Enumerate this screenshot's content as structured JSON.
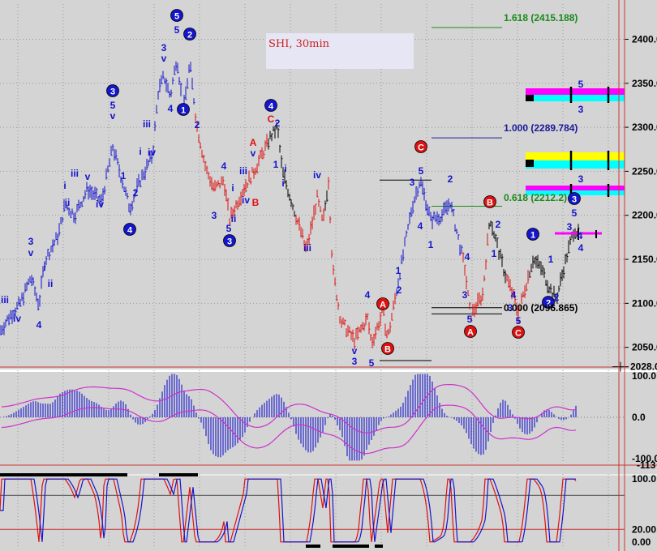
{
  "title": "SHI, 30min",
  "fib_labels": [
    {
      "text": "1.618 (2415.188)",
      "price": 2415.188,
      "color": "#1a8a1a"
    },
    {
      "text": "1.000 (2289.784)",
      "price": 2289.784,
      "color": "#1a1a99"
    },
    {
      "text": "0.618 (2212.2)",
      "price": 2212.2,
      "color": "#1a8a1a"
    },
    {
      "text": "0.000 (2096.865)",
      "price": 2096.865,
      "color": "#000000"
    }
  ],
  "price_axis": {
    "ticks": [
      "2400.0",
      "2350.0",
      "2300.0",
      "2250.0",
      "2200.0",
      "2150.0",
      "2100.0",
      "2050.0"
    ],
    "tick_values": [
      2400,
      2350,
      2300,
      2250,
      2200,
      2150,
      2100,
      2050
    ],
    "current": "2028.0",
    "ylim": [
      2023,
      2440
    ]
  },
  "macd_axis": {
    "ticks": [
      "100.0",
      "0.0",
      "-100.0"
    ],
    "tick_values": [
      100,
      0,
      -100
    ],
    "current": "-113",
    "ylim": [
      -112,
      108
    ]
  },
  "stoch_axis": {
    "ticks": [
      "100.0",
      "20.00",
      "0.00"
    ],
    "tick_values": [
      100,
      20,
      0
    ],
    "ylim": [
      -8,
      108
    ]
  },
  "colors": {
    "blue": "#1515cc",
    "red": "#dd1111",
    "black": "#000000",
    "magenta": "#ff00ff",
    "cyan": "#00ffff",
    "yellow": "#ffff00",
    "green": "#1a8a1a"
  },
  "wave_labels": [
    {
      "t": "5",
      "x": 218,
      "y": 20,
      "c": "blue",
      "circ": true
    },
    {
      "t": "5",
      "x": 218,
      "y": 37,
      "c": "blue"
    },
    {
      "t": "2",
      "x": 234,
      "y": 43,
      "c": "blue",
      "circ": true
    },
    {
      "t": "3",
      "x": 202,
      "y": 59,
      "c": "blue"
    },
    {
      "t": "v",
      "x": 202,
      "y": 72,
      "c": "blue"
    },
    {
      "t": "3",
      "x": 139,
      "y": 113,
      "c": "blue",
      "circ": true
    },
    {
      "t": "5",
      "x": 139,
      "y": 130,
      "c": "blue"
    },
    {
      "t": "v",
      "x": 139,
      "y": 143,
      "c": "blue"
    },
    {
      "t": "4",
      "x": 210,
      "y": 134,
      "c": "blue"
    },
    {
      "t": "1",
      "x": 226,
      "y": 136,
      "c": "blue",
      "circ": true
    },
    {
      "t": "2",
      "x": 243,
      "y": 154,
      "c": "blue"
    },
    {
      "t": "iii",
      "x": 181,
      "y": 153,
      "c": "blue"
    },
    {
      "t": "i",
      "x": 173,
      "y": 187,
      "c": "blue"
    },
    {
      "t": "iv",
      "x": 187,
      "y": 188,
      "c": "blue"
    },
    {
      "t": "iii",
      "x": 92,
      "y": 214,
      "c": "blue"
    },
    {
      "t": "v",
      "x": 108,
      "y": 218,
      "c": "blue"
    },
    {
      "t": "iv",
      "x": 123,
      "y": 252,
      "c": "blue"
    },
    {
      "t": "i",
      "x": 80,
      "y": 229,
      "c": "blue"
    },
    {
      "t": "ii",
      "x": 83,
      "y": 250,
      "c": "blue"
    },
    {
      "t": "1",
      "x": 152,
      "y": 217,
      "c": "blue"
    },
    {
      "t": "2",
      "x": 167,
      "y": 238,
      "c": "blue"
    },
    {
      "t": "4",
      "x": 160,
      "y": 284,
      "c": "blue",
      "circ": true
    },
    {
      "t": "3",
      "x": 38,
      "y": 298,
      "c": "blue"
    },
    {
      "t": "v",
      "x": 38,
      "y": 312,
      "c": "blue"
    },
    {
      "t": "i",
      "x": 55,
      "y": 330,
      "c": "blue"
    },
    {
      "t": "ii",
      "x": 62,
      "y": 350,
      "c": "blue"
    },
    {
      "t": "iii",
      "x": 6,
      "y": 370,
      "c": "blue"
    },
    {
      "t": "iv",
      "x": 21,
      "y": 393,
      "c": "blue"
    },
    {
      "t": "4",
      "x": 48,
      "y": 401,
      "c": "blue"
    },
    {
      "t": "4",
      "x": 334,
      "y": 131,
      "c": "blue",
      "circ": true
    },
    {
      "t": "C",
      "x": 334,
      "y": 147,
      "c": "red"
    },
    {
      "t": "2",
      "x": 342,
      "y": 152,
      "c": "blue"
    },
    {
      "t": "A",
      "x": 312,
      "y": 176,
      "c": "red"
    },
    {
      "t": "v",
      "x": 312,
      "y": 189,
      "c": "blue"
    },
    {
      "t": "4",
      "x": 276,
      "y": 205,
      "c": "blue"
    },
    {
      "t": "iii",
      "x": 300,
      "y": 211,
      "c": "blue"
    },
    {
      "t": "1",
      "x": 340,
      "y": 203,
      "c": "blue"
    },
    {
      "t": "i",
      "x": 352,
      "y": 208,
      "c": "blue"
    },
    {
      "t": "iv",
      "x": 391,
      "y": 216,
      "c": "blue"
    },
    {
      "t": "i",
      "x": 349,
      "y": 226,
      "c": "blue"
    },
    {
      "t": "i",
      "x": 287,
      "y": 232,
      "c": "blue"
    },
    {
      "t": "iv",
      "x": 303,
      "y": 247,
      "c": "blue"
    },
    {
      "t": "B",
      "x": 315,
      "y": 250,
      "c": "red"
    },
    {
      "t": "3",
      "x": 264,
      "y": 266,
      "c": "blue"
    },
    {
      "t": "ii",
      "x": 288,
      "y": 270,
      "c": "blue"
    },
    {
      "t": "5",
      "x": 282,
      "y": 282,
      "c": "blue"
    },
    {
      "t": "3",
      "x": 283,
      "y": 298,
      "c": "blue",
      "circ": true
    },
    {
      "t": "iii",
      "x": 379,
      "y": 306,
      "c": "blue"
    },
    {
      "t": "C",
      "x": 519,
      "y": 182,
      "c": "red",
      "circ": true
    },
    {
      "t": "5",
      "x": 519,
      "y": 211,
      "c": "blue"
    },
    {
      "t": "3",
      "x": 508,
      "y": 225,
      "c": "blue"
    },
    {
      "t": "2",
      "x": 555,
      "y": 221,
      "c": "blue"
    },
    {
      "t": "B",
      "x": 604,
      "y": 250,
      "c": "red",
      "circ": true
    },
    {
      "t": "2",
      "x": 614,
      "y": 277,
      "c": "blue"
    },
    {
      "t": "4",
      "x": 518,
      "y": 279,
      "c": "blue"
    },
    {
      "t": "1",
      "x": 531,
      "y": 302,
      "c": "blue"
    },
    {
      "t": "4",
      "x": 576,
      "y": 317,
      "c": "blue"
    },
    {
      "t": "1",
      "x": 609,
      "y": 313,
      "c": "blue"
    },
    {
      "t": "1",
      "x": 491,
      "y": 334,
      "c": "blue"
    },
    {
      "t": "2",
      "x": 492,
      "y": 358,
      "c": "blue"
    },
    {
      "t": "3",
      "x": 573,
      "y": 364,
      "c": "blue"
    },
    {
      "t": "4",
      "x": 633,
      "y": 364,
      "c": "blue"
    },
    {
      "t": "3",
      "x": 629,
      "y": 380,
      "c": "blue"
    },
    {
      "t": "5",
      "x": 579,
      "y": 394,
      "c": "blue"
    },
    {
      "t": "A",
      "x": 580,
      "y": 410,
      "c": "red",
      "circ": true
    },
    {
      "t": "5",
      "x": 639,
      "y": 396,
      "c": "blue"
    },
    {
      "t": "C",
      "x": 639,
      "y": 411,
      "c": "red",
      "circ": true
    },
    {
      "t": "4",
      "x": 453,
      "y": 364,
      "c": "blue"
    },
    {
      "t": "A",
      "x": 472,
      "y": 376,
      "c": "red",
      "circ": true
    },
    {
      "t": "v",
      "x": 437,
      "y": 433,
      "c": "blue"
    },
    {
      "t": "3",
      "x": 437,
      "y": 446,
      "c": "blue"
    },
    {
      "t": "B",
      "x": 478,
      "y": 431,
      "c": "red",
      "circ": true
    },
    {
      "t": "5",
      "x": 458,
      "y": 448,
      "c": "blue"
    },
    {
      "t": "1",
      "x": 657,
      "y": 290,
      "c": "blue",
      "circ": true
    },
    {
      "t": "1",
      "x": 679,
      "y": 320,
      "c": "blue"
    },
    {
      "t": "2",
      "x": 676,
      "y": 374,
      "c": "blue",
      "circ": true
    },
    {
      "t": "2",
      "x": 686,
      "y": 367,
      "c": "blue"
    },
    {
      "t": "3",
      "x": 708,
      "y": 246,
      "c": "blue",
      "circ": true
    },
    {
      "t": "5",
      "x": 708,
      "y": 263,
      "c": "blue"
    },
    {
      "t": "3",
      "x": 702,
      "y": 280,
      "c": "blue"
    },
    {
      "t": "4",
      "x": 715,
      "y": 291,
      "c": "blue"
    },
    {
      "t": "4",
      "x": 716,
      "y": 306,
      "c": "blue"
    },
    {
      "t": "5",
      "x": 716,
      "y": 104,
      "c": "blue"
    },
    {
      "t": "3",
      "x": 716,
      "y": 135,
      "c": "blue"
    },
    {
      "t": "3",
      "x": 716,
      "y": 221,
      "c": "blue"
    }
  ]
}
